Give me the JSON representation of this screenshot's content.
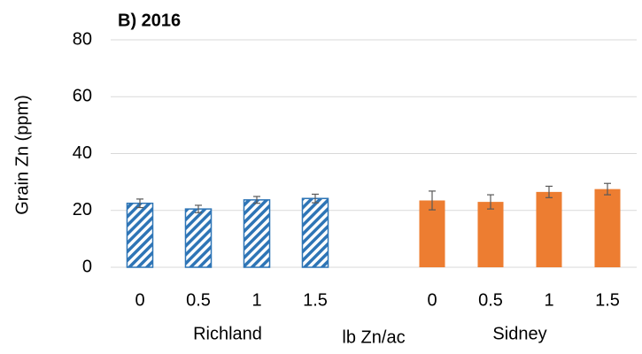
{
  "chart_data": {
    "type": "bar",
    "title": "B) 2016",
    "y_label": "Grain Zn (ppm)",
    "x_label": "lb Zn/ac",
    "categories": [
      "0",
      "0.5",
      "1",
      "1.5",
      null,
      "0",
      "0.5",
      "1",
      "1.5"
    ],
    "series": [
      {
        "name": "Richland",
        "color": "#2e75b6",
        "hatch": true,
        "values": [
          22.5,
          20.5,
          23.7,
          24.2,
          null,
          null,
          null,
          null,
          null
        ],
        "errors": [
          1.5,
          1.3,
          1.2,
          1.5,
          null,
          null,
          null,
          null,
          null
        ]
      },
      {
        "name": "Sidney",
        "color": "#ed7d31",
        "hatch": false,
        "values": [
          null,
          null,
          null,
          null,
          null,
          23.5,
          23,
          26.5,
          27.5
        ],
        "errors": [
          null,
          null,
          null,
          null,
          null,
          3.3,
          2.5,
          2,
          2
        ]
      }
    ],
    "ylim": [
      0,
      80
    ],
    "yticks": [
      0,
      20,
      40,
      60,
      80
    ],
    "grid": true
  }
}
